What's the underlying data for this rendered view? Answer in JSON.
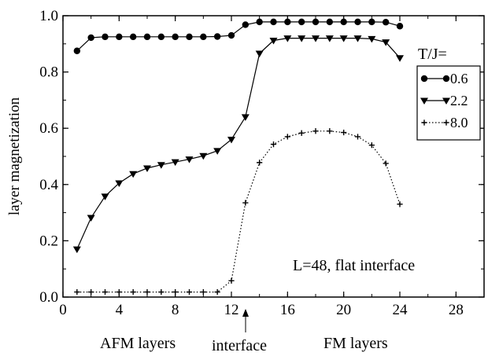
{
  "chart_data": {
    "type": "line",
    "title": "",
    "xlabel": "",
    "ylabel": "layer magnetization",
    "xlim": [
      0,
      30
    ],
    "ylim": [
      0.0,
      1.0
    ],
    "xticks": [
      0,
      4,
      8,
      12,
      16,
      20,
      24,
      28
    ],
    "yticks": [
      0.0,
      0.2,
      0.4,
      0.6,
      0.8,
      1.0
    ],
    "xtick_labels": [
      "0",
      "4",
      "8",
      "12",
      "16",
      "20",
      "24",
      "28"
    ],
    "ytick_labels": [
      "0.0",
      "0.2",
      "0.4",
      "0.6",
      "0.8",
      "1.0"
    ],
    "grid": false,
    "legend_title": "T/J=",
    "legend_position": "top-right",
    "annotation": "L=48, flat interface",
    "bottom_labels": {
      "afm": "AFM layers",
      "interface": "interface",
      "fm": "FM layers"
    },
    "interface_layer": 13,
    "series": [
      {
        "name": "0.6",
        "marker": "circle",
        "line": "solid",
        "x": [
          1,
          2,
          3,
          4,
          5,
          6,
          7,
          8,
          9,
          10,
          11,
          12,
          13,
          14,
          15,
          16,
          17,
          18,
          19,
          20,
          21,
          22,
          23,
          24
        ],
        "y": [
          0.875,
          0.922,
          0.925,
          0.925,
          0.925,
          0.925,
          0.925,
          0.925,
          0.925,
          0.925,
          0.926,
          0.93,
          0.968,
          0.978,
          0.978,
          0.978,
          0.978,
          0.978,
          0.978,
          0.978,
          0.978,
          0.978,
          0.977,
          0.963
        ]
      },
      {
        "name": "2.2",
        "marker": "triangle-down",
        "line": "solid",
        "x": [
          1,
          2,
          3,
          4,
          5,
          6,
          7,
          8,
          9,
          10,
          11,
          12,
          13,
          14,
          15,
          16,
          17,
          18,
          19,
          20,
          21,
          22,
          23,
          24
        ],
        "y": [
          0.17,
          0.282,
          0.358,
          0.405,
          0.438,
          0.458,
          0.47,
          0.48,
          0.49,
          0.502,
          0.52,
          0.56,
          0.64,
          0.866,
          0.912,
          0.92,
          0.92,
          0.92,
          0.92,
          0.92,
          0.92,
          0.918,
          0.906,
          0.85
        ]
      },
      {
        "name": "8.0",
        "marker": "plus",
        "line": "dotted",
        "x": [
          1,
          2,
          3,
          4,
          5,
          6,
          7,
          8,
          9,
          10,
          11,
          12,
          13,
          14,
          15,
          16,
          17,
          18,
          19,
          20,
          21,
          22,
          23,
          24
        ],
        "y": [
          0.018,
          0.018,
          0.018,
          0.018,
          0.018,
          0.018,
          0.018,
          0.018,
          0.018,
          0.018,
          0.018,
          0.058,
          0.335,
          0.478,
          0.543,
          0.57,
          0.583,
          0.59,
          0.59,
          0.585,
          0.57,
          0.54,
          0.475,
          0.33
        ]
      }
    ]
  }
}
